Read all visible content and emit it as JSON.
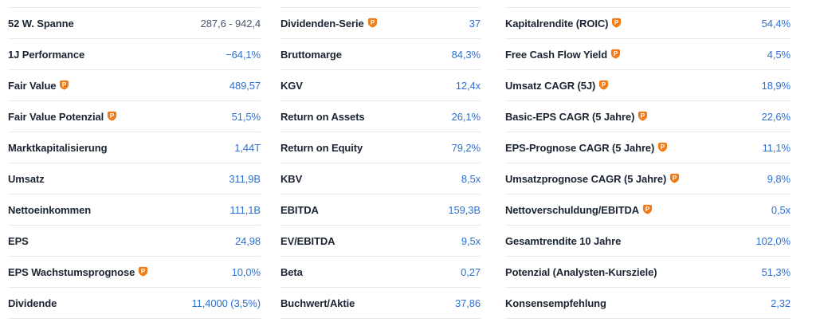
{
  "theme": {
    "accent_blue": "#2e70d1",
    "label_color": "#1a2433",
    "neutral_value_color": "#475569",
    "divider_color": "#e7e9ee",
    "badge_orange": "#f17b16"
  },
  "premium_badge": {
    "letter": "P",
    "icon_name": "premium-info-icon"
  },
  "columns": [
    {
      "rows": [
        {
          "label": "52 W. Spanne",
          "value": "287,6 - 942,4",
          "value_style": "neutral",
          "badge": false
        },
        {
          "label": "1J Performance",
          "value": "−64,1%",
          "value_style": "blue",
          "badge": false
        },
        {
          "label": "Fair Value",
          "value": "489,57",
          "value_style": "blue",
          "badge": true
        },
        {
          "label": "Fair Value Potenzial",
          "value": "51,5%",
          "value_style": "blue",
          "badge": true
        },
        {
          "label": "Marktkapitalisierung",
          "value": "1,44T",
          "value_style": "blue",
          "badge": false
        },
        {
          "label": "Umsatz",
          "value": "311,9B",
          "value_style": "blue",
          "badge": false
        },
        {
          "label": "Nettoeinkommen",
          "value": "111,1B",
          "value_style": "blue",
          "badge": false
        },
        {
          "label": "EPS",
          "value": "24,98",
          "value_style": "blue",
          "badge": false
        },
        {
          "label": "EPS Wachstumsprognose",
          "value": "10,0%",
          "value_style": "blue",
          "badge": true
        },
        {
          "label": "Dividende",
          "value": "11,4000 (3,5%)",
          "value_style": "blue",
          "badge": false
        }
      ]
    },
    {
      "rows": [
        {
          "label": "Dividenden-Serie",
          "value": "37",
          "value_style": "blue",
          "badge": true
        },
        {
          "label": "Bruttomarge",
          "value": "84,3%",
          "value_style": "blue",
          "badge": false
        },
        {
          "label": "KGV",
          "value": "12,4x",
          "value_style": "blue",
          "badge": false
        },
        {
          "label": "Return on Assets",
          "value": "26,1%",
          "value_style": "blue",
          "badge": false
        },
        {
          "label": "Return on Equity",
          "value": "79,2%",
          "value_style": "blue",
          "badge": false
        },
        {
          "label": "KBV",
          "value": "8,5x",
          "value_style": "blue",
          "badge": false
        },
        {
          "label": "EBITDA",
          "value": "159,3B",
          "value_style": "blue",
          "badge": false
        },
        {
          "label": "EV/EBITDA",
          "value": "9,5x",
          "value_style": "blue",
          "badge": false
        },
        {
          "label": "Beta",
          "value": "0,27",
          "value_style": "blue",
          "badge": false
        },
        {
          "label": "Buchwert/Aktie",
          "value": "37,86",
          "value_style": "blue",
          "badge": false
        }
      ]
    },
    {
      "rows": [
        {
          "label": "Kapitalrendite (ROIC)",
          "value": "54,4%",
          "value_style": "blue",
          "badge": true
        },
        {
          "label": "Free Cash Flow Yield",
          "value": "4,5%",
          "value_style": "blue",
          "badge": true
        },
        {
          "label": "Umsatz CAGR (5J)",
          "value": "18,9%",
          "value_style": "blue",
          "badge": true
        },
        {
          "label": "Basic-EPS CAGR (5 Jahre)",
          "value": "22,6%",
          "value_style": "blue",
          "badge": true
        },
        {
          "label": "EPS-Prognose CAGR (5 Jahre)",
          "value": "11,1%",
          "value_style": "blue",
          "badge": true
        },
        {
          "label": "Umsatzprognose CAGR (5 Jahre)",
          "value": "9,8%",
          "value_style": "blue",
          "badge": true
        },
        {
          "label": "Nettoverschuldung/EBITDA",
          "value": "0,5x",
          "value_style": "blue",
          "badge": true
        },
        {
          "label": "Gesamtrendite 10 Jahre",
          "value": "102,0%",
          "value_style": "blue",
          "badge": false
        },
        {
          "label": "Potenzial (Analysten-Kursziele)",
          "value": "51,3%",
          "value_style": "blue",
          "badge": false
        },
        {
          "label": "Konsensempfehlung",
          "value": "2,32",
          "value_style": "blue",
          "badge": false
        }
      ]
    }
  ]
}
